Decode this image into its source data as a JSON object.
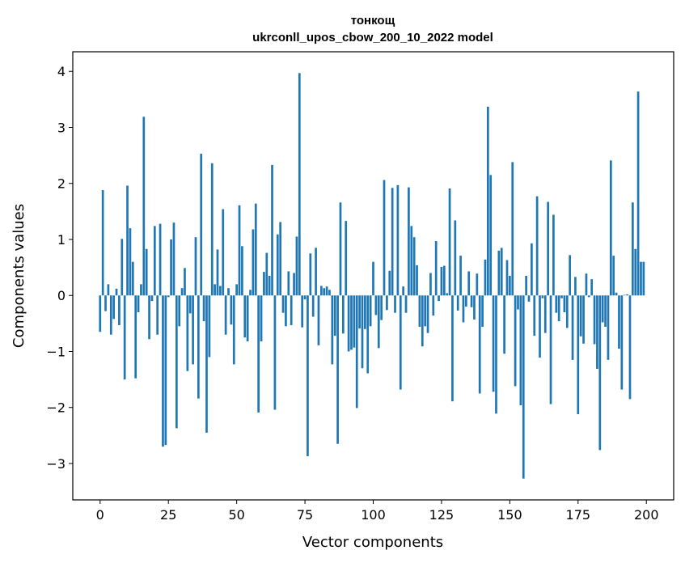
{
  "chart_data": {
    "type": "bar",
    "title_line1": "тонкощ",
    "title_line2": "ukrconll_upos_cbow_200_10_2022 model",
    "xlabel": "Vector components",
    "ylabel": "Components values",
    "xlim": [
      -10,
      210
    ],
    "ylim": [
      -3.65,
      4.35
    ],
    "xticks": [
      0,
      25,
      50,
      75,
      100,
      125,
      150,
      175,
      200
    ],
    "yticks": [
      -3,
      -2,
      -1,
      0,
      1,
      2,
      3,
      4
    ],
    "ytick_labels": [
      "−3",
      "−2",
      "−1",
      "0",
      "1",
      "2",
      "3",
      "4"
    ],
    "grid": false,
    "color": "#1f77b4",
    "values": [
      -0.65,
      1.88,
      -0.28,
      0.2,
      -0.7,
      -0.42,
      0.12,
      -0.53,
      1.01,
      -1.5,
      1.96,
      1.2,
      0.6,
      -1.48,
      -0.3,
      0.2,
      3.19,
      0.83,
      -0.78,
      -0.1,
      1.24,
      -0.7,
      1.28,
      -2.7,
      -2.67,
      -0.03,
      1.0,
      1.3,
      -2.37,
      -0.55,
      0.13,
      0.49,
      -1.35,
      -0.32,
      -1.23,
      1.04,
      -1.84,
      2.53,
      -0.46,
      -2.45,
      -1.1,
      2.36,
      0.2,
      0.82,
      0.17,
      1.54,
      -0.7,
      0.13,
      -0.52,
      -1.23,
      0.2,
      1.61,
      0.88,
      -0.75,
      -0.82,
      0.1,
      1.18,
      1.64,
      -2.09,
      -0.82,
      0.42,
      0.76,
      0.35,
      2.33,
      -2.04,
      1.09,
      1.31,
      -0.31,
      -0.55,
      0.43,
      -0.53,
      0.4,
      1.05,
      3.97,
      -0.57,
      -0.07,
      -2.87,
      0.75,
      -0.38,
      0.85,
      -0.89,
      0.17,
      0.13,
      0.16,
      0.1,
      -1.23,
      -0.72,
      -2.65,
      1.66,
      -0.68,
      1.33,
      -1.0,
      -0.97,
      -0.93,
      -2.01,
      -0.59,
      -1.3,
      -0.6,
      -1.39,
      -0.55,
      0.6,
      -0.35,
      -0.94,
      -0.44,
      2.06,
      -0.26,
      0.44,
      1.92,
      -0.31,
      1.97,
      -1.68,
      0.16,
      -0.31,
      1.93,
      1.24,
      1.04,
      0.54,
      -0.56,
      -0.91,
      -0.55,
      -0.67,
      0.4,
      -0.36,
      0.97,
      -0.1,
      0.51,
      0.53,
      0.04,
      1.91,
      -1.89,
      1.34,
      -0.27,
      0.71,
      -0.48,
      -0.2,
      0.43,
      -0.21,
      -0.43,
      0.39,
      -1.75,
      -0.56,
      0.64,
      3.37,
      2.15,
      -1.72,
      -2.11,
      0.8,
      0.85,
      -1.04,
      0.63,
      0.35,
      2.38,
      -1.62,
      -0.25,
      -1.96,
      -3.27,
      0.35,
      -0.11,
      0.93,
      -0.72,
      1.77,
      -1.11,
      -0.05,
      -0.67,
      1.67,
      -1.94,
      1.44,
      -0.31,
      -0.46,
      -0.05,
      -0.3,
      -0.58,
      0.72,
      -1.15,
      0.33,
      -2.12,
      -0.73,
      -0.86,
      0.39,
      -0.03,
      0.29,
      -0.87,
      -1.31,
      -2.76,
      -0.48,
      -0.56,
      -1.15,
      2.41,
      0.71,
      0.05,
      -0.95,
      -1.68,
      0.01,
      0.02,
      -1.85,
      1.66,
      0.83,
      3.64,
      0.6,
      0.6
    ]
  }
}
